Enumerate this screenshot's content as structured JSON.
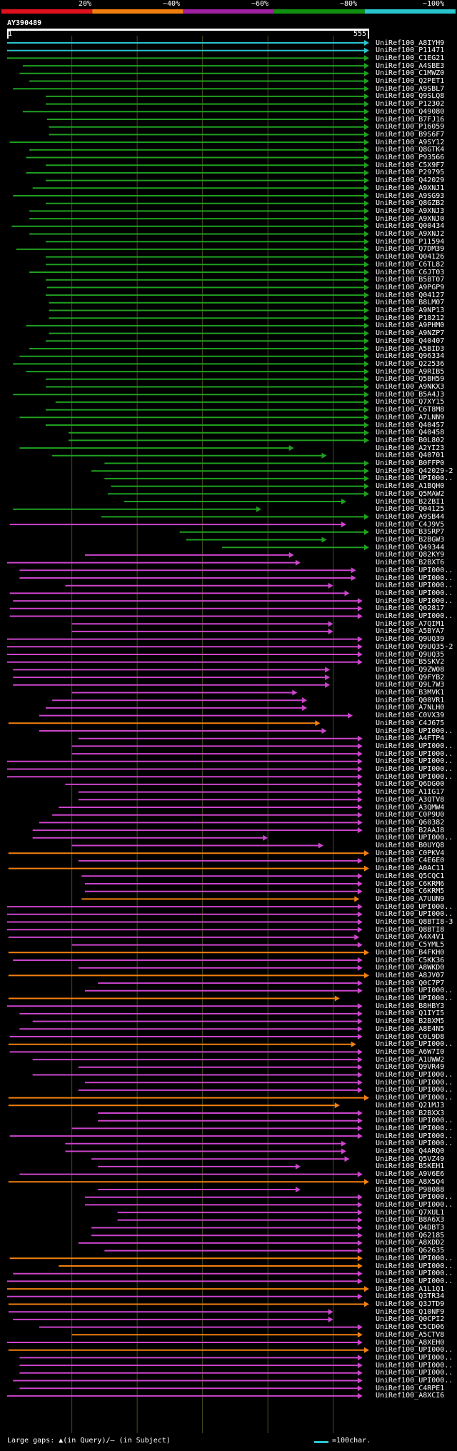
{
  "query": {
    "id": "AY390489",
    "start": "1",
    "end": "555"
  },
  "scale": {
    "labels": [
      "20%",
      "~40%",
      "~60%",
      "~80%",
      "~100%"
    ],
    "colors": [
      "#e0101e",
      "#f07f10",
      "#a020a0",
      "#109010",
      "#2ac4cf"
    ]
  },
  "colors": {
    "cyan": "#2ac4cf",
    "green": "#1fa01f",
    "magenta": "#cc44cc",
    "orange": "#f28010",
    "grid": "#4a4a1e",
    "text": "#ffffff"
  },
  "legend": {
    "text": "Large gaps: ▲(in Query)/– (in Subject)",
    "scale_text": "=100char."
  },
  "hits": [
    {
      "name": "UniRef100_A8IYH9",
      "from": 1,
      "to": 555,
      "c": "cyan"
    },
    {
      "name": "UniRef100_P11471",
      "from": 1,
      "to": 555,
      "c": "cyan"
    },
    {
      "name": "UniRef100_C1EG21",
      "from": 1,
      "to": 555,
      "c": "green"
    },
    {
      "name": "UniRef100_A4SBE3",
      "from": 25,
      "to": 555,
      "c": "green"
    },
    {
      "name": "UniRef100_C1MWZ0",
      "from": 20,
      "to": 555,
      "c": "green"
    },
    {
      "name": "UniRef100_Q2PET1",
      "from": 35,
      "to": 555,
      "c": "green"
    },
    {
      "name": "UniRef100_A9SBL7",
      "from": 10,
      "to": 555,
      "c": "green"
    },
    {
      "name": "UniRef100_Q9SLQ8",
      "from": 60,
      "to": 555,
      "c": "green"
    },
    {
      "name": "UniRef100_P12302",
      "from": 60,
      "to": 555,
      "c": "green"
    },
    {
      "name": "UniRef100_Q49080",
      "from": 25,
      "to": 555,
      "c": "green"
    },
    {
      "name": "UniRef100_B7FJ16",
      "from": 62,
      "to": 555,
      "c": "green"
    },
    {
      "name": "UniRef100_P16059",
      "from": 65,
      "to": 555,
      "c": "green"
    },
    {
      "name": "UniRef100_B9S6F7",
      "from": 65,
      "to": 555,
      "c": "green"
    },
    {
      "name": "UniRef100_A9SY12",
      "from": 5,
      "to": 555,
      "c": "green"
    },
    {
      "name": "UniRef100_Q8GTK4",
      "from": 35,
      "to": 555,
      "c": "green"
    },
    {
      "name": "UniRef100_P93566",
      "from": 30,
      "to": 555,
      "c": "green"
    },
    {
      "name": "UniRef100_C5X9F7",
      "from": 60,
      "to": 555,
      "c": "green"
    },
    {
      "name": "UniRef100_P29795",
      "from": 30,
      "to": 555,
      "c": "green"
    },
    {
      "name": "UniRef100_Q42029",
      "from": 60,
      "to": 555,
      "c": "green"
    },
    {
      "name": "UniRef100_A9XNJ1",
      "from": 40,
      "to": 555,
      "c": "green"
    },
    {
      "name": "UniRef100_A9SG93",
      "from": 10,
      "to": 555,
      "c": "green"
    },
    {
      "name": "UniRef100_Q8GZB2",
      "from": 60,
      "to": 555,
      "c": "green"
    },
    {
      "name": "UniRef100_A9XNJ3",
      "from": 35,
      "to": 555,
      "c": "green"
    },
    {
      "name": "UniRef100_A9XNJ0",
      "from": 35,
      "to": 555,
      "c": "green"
    },
    {
      "name": "UniRef100_Q00434",
      "from": 8,
      "to": 555,
      "c": "green"
    },
    {
      "name": "UniRef100_A9XNJ2",
      "from": 35,
      "to": 555,
      "c": "green"
    },
    {
      "name": "UniRef100_P11594",
      "from": 60,
      "to": 555,
      "c": "green"
    },
    {
      "name": "UniRef100_Q7DM39",
      "from": 15,
      "to": 555,
      "c": "green"
    },
    {
      "name": "UniRef100_Q04126",
      "from": 60,
      "to": 555,
      "c": "green"
    },
    {
      "name": "UniRef100_C6TL82",
      "from": 60,
      "to": 555,
      "c": "green"
    },
    {
      "name": "UniRef100_C6JT03",
      "from": 35,
      "to": 555,
      "c": "green"
    },
    {
      "name": "UniRef100_B5BT07",
      "from": 60,
      "to": 555,
      "c": "green"
    },
    {
      "name": "UniRef100_A9PGP9",
      "from": 62,
      "to": 555,
      "c": "green"
    },
    {
      "name": "UniRef100_Q04127",
      "from": 60,
      "to": 555,
      "c": "green"
    },
    {
      "name": "UniRef100_B8LM07",
      "from": 65,
      "to": 555,
      "c": "green"
    },
    {
      "name": "UniRef100_A9NP13",
      "from": 65,
      "to": 555,
      "c": "green"
    },
    {
      "name": "UniRef100_P18212",
      "from": 65,
      "to": 555,
      "c": "green"
    },
    {
      "name": "UniRef100_A9PHM0",
      "from": 30,
      "to": 555,
      "c": "green"
    },
    {
      "name": "UniRef100_A9NZP7",
      "from": 65,
      "to": 555,
      "c": "green"
    },
    {
      "name": "UniRef100_Q40407",
      "from": 60,
      "to": 555,
      "c": "green"
    },
    {
      "name": "UniRef100_A5BID3",
      "from": 35,
      "to": 555,
      "c": "green"
    },
    {
      "name": "UniRef100_Q96334",
      "from": 20,
      "to": 555,
      "c": "green"
    },
    {
      "name": "UniRef100_Q22536",
      "from": 10,
      "to": 555,
      "c": "green"
    },
    {
      "name": "UniRef100_A9RIB5",
      "from": 30,
      "to": 555,
      "c": "green"
    },
    {
      "name": "UniRef100_Q5BH59",
      "from": 60,
      "to": 555,
      "c": "green"
    },
    {
      "name": "UniRef100_A9NKX3",
      "from": 60,
      "to": 555,
      "c": "green"
    },
    {
      "name": "UniRef100_B5A4J3",
      "from": 10,
      "to": 555,
      "c": "green"
    },
    {
      "name": "UniRef100_Q7XY15",
      "from": 75,
      "to": 555,
      "c": "green"
    },
    {
      "name": "UniRef100_C6T8M8",
      "from": 60,
      "to": 555,
      "c": "green"
    },
    {
      "name": "UniRef100_A7LNN9",
      "from": 20,
      "to": 555,
      "c": "green"
    },
    {
      "name": "UniRef100_Q40457",
      "from": 60,
      "to": 555,
      "c": "green"
    },
    {
      "name": "UniRef100_Q40458",
      "from": 95,
      "to": 555,
      "c": "green"
    },
    {
      "name": "UniRef100_B0L802",
      "from": 95,
      "to": 555,
      "c": "green"
    },
    {
      "name": "UniRef100_A2YI23",
      "from": 20,
      "to": 440,
      "c": "green"
    },
    {
      "name": "UniRef100_Q40701",
      "from": 70,
      "to": 490,
      "c": "green"
    },
    {
      "name": "UniRef100_B0FFP0",
      "from": 150,
      "to": 555,
      "c": "green"
    },
    {
      "name": "UniRef100_Q42029-2",
      "from": 130,
      "to": 555,
      "c": "green"
    },
    {
      "name": "UniRef100_UPI000..",
      "from": 150,
      "to": 555,
      "c": "green"
    },
    {
      "name": "UniRef100_A1BQH0",
      "from": 160,
      "to": 555,
      "c": "green"
    },
    {
      "name": "UniRef100_Q5MAW2",
      "from": 155,
      "to": 555,
      "c": "green"
    },
    {
      "name": "UniRef100_B2ZBI1",
      "from": 180,
      "to": 520,
      "c": "green"
    },
    {
      "name": "UniRef100_Q04125",
      "from": 10,
      "to": 390,
      "c": "green"
    },
    {
      "name": "UniRef100_A9SB44",
      "from": 145,
      "to": 555,
      "c": "green"
    },
    {
      "name": "UniRef100_C4J9V5",
      "from": 5,
      "to": 520,
      "c": "magenta"
    },
    {
      "name": "UniRef100_B3SRP7",
      "from": 265,
      "to": 555,
      "c": "green"
    },
    {
      "name": "UniRef100_B2BGW3",
      "from": 275,
      "to": 490,
      "c": "green"
    },
    {
      "name": "UniRef100_Q49344",
      "from": 330,
      "to": 555,
      "c": "green"
    },
    {
      "name": "UniRef100_Q82KY9",
      "from": 120,
      "to": 440,
      "c": "magenta"
    },
    {
      "name": "UniRef100_B2BXT6",
      "from": 1,
      "to": 450,
      "c": "magenta"
    },
    {
      "name": "UniRef100_UPI000..",
      "from": 20,
      "to": 535,
      "c": "magenta"
    },
    {
      "name": "UniRef100_UPI000..",
      "from": 20,
      "to": 535,
      "c": "magenta"
    },
    {
      "name": "UniRef100_UPI000..",
      "from": 90,
      "to": 500,
      "c": "magenta"
    },
    {
      "name": "UniRef100_UPI000..",
      "from": 5,
      "to": 525,
      "c": "magenta"
    },
    {
      "name": "UniRef100_UPI000..",
      "from": 10,
      "to": 545,
      "c": "magenta"
    },
    {
      "name": "UniRef100_Q02817",
      "from": 5,
      "to": 545,
      "c": "magenta"
    },
    {
      "name": "UniRef100_UPI000..",
      "from": 5,
      "to": 545,
      "c": "magenta"
    },
    {
      "name": "UniRef100_A7QIM1",
      "from": 100,
      "to": 500,
      "c": "magenta"
    },
    {
      "name": "UniRef100_A5BYA7",
      "from": 100,
      "to": 500,
      "c": "magenta"
    },
    {
      "name": "UniRef100_Q9UQ39",
      "from": 1,
      "to": 545,
      "c": "magenta"
    },
    {
      "name": "UniRef100_Q9UQ35-2",
      "from": 1,
      "to": 545,
      "c": "magenta"
    },
    {
      "name": "UniRef100_Q9UQ35",
      "from": 1,
      "to": 545,
      "c": "magenta"
    },
    {
      "name": "UniRef100_B5SKV2",
      "from": 1,
      "to": 545,
      "c": "magenta"
    },
    {
      "name": "UniRef100_Q9ZW08",
      "from": 10,
      "to": 495,
      "c": "magenta"
    },
    {
      "name": "UniRef100_Q9FYB2",
      "from": 10,
      "to": 495,
      "c": "magenta"
    },
    {
      "name": "UniRef100_Q9L7W3",
      "from": 10,
      "to": 495,
      "c": "magenta"
    },
    {
      "name": "UniRef100_B3MVK1",
      "from": 100,
      "to": 445,
      "c": "magenta"
    },
    {
      "name": "UniRef100_Q00VR1",
      "from": 70,
      "to": 460,
      "c": "magenta"
    },
    {
      "name": "UniRef100_A7NLH0",
      "from": 60,
      "to": 460,
      "c": "magenta"
    },
    {
      "name": "UniRef100_C0VX39",
      "from": 50,
      "to": 530,
      "c": "magenta"
    },
    {
      "name": "UniRef100_C4J675",
      "from": 3,
      "to": 480,
      "c": "orange"
    },
    {
      "name": "UniRef100_UPI000..",
      "from": 50,
      "to": 490,
      "c": "magenta"
    },
    {
      "name": "UniRef100_A4FTP4",
      "from": 110,
      "to": 545,
      "c": "magenta"
    },
    {
      "name": "UniRef100_UPI000..",
      "from": 100,
      "to": 545,
      "c": "magenta"
    },
    {
      "name": "UniRef100_UPI000..",
      "from": 100,
      "to": 545,
      "c": "magenta"
    },
    {
      "name": "UniRef100_UPI000..",
      "from": 1,
      "to": 545,
      "c": "magenta"
    },
    {
      "name": "UniRef100_UPI000..",
      "from": 1,
      "to": 545,
      "c": "magenta"
    },
    {
      "name": "UniRef100_UPI000..",
      "from": 1,
      "to": 545,
      "c": "magenta"
    },
    {
      "name": "UniRef100_Q6DG00",
      "from": 90,
      "to": 545,
      "c": "magenta"
    },
    {
      "name": "UniRef100_A1IG17",
      "from": 110,
      "to": 545,
      "c": "magenta"
    },
    {
      "name": "UniRef100_A3QTV8",
      "from": 110,
      "to": 545,
      "c": "magenta"
    },
    {
      "name": "UniRef100_A3QMW4",
      "from": 80,
      "to": 545,
      "c": "magenta"
    },
    {
      "name": "UniRef100_C0P9U0",
      "from": 70,
      "to": 545,
      "c": "magenta"
    },
    {
      "name": "UniRef100_Q60382",
      "from": 50,
      "to": 545,
      "c": "magenta"
    },
    {
      "name": "UniRef100_B2AAJ8",
      "from": 40,
      "to": 545,
      "c": "magenta"
    },
    {
      "name": "UniRef100_UPI000..",
      "from": 40,
      "to": 400,
      "c": "magenta"
    },
    {
      "name": "UniRef100_B0UYQ8",
      "from": 100,
      "to": 485,
      "c": "magenta"
    },
    {
      "name": "UniRef100_C0PKV4",
      "from": 3,
      "to": 555,
      "c": "orange"
    },
    {
      "name": "UniRef100_C4E6E0",
      "from": 110,
      "to": 545,
      "c": "magenta"
    },
    {
      "name": "UniRef100_A0AC11",
      "from": 3,
      "to": 555,
      "c": "orange"
    },
    {
      "name": "UniRef100_Q5CQC1",
      "from": 115,
      "to": 545,
      "c": "magenta"
    },
    {
      "name": "UniRef100_C6KRM6",
      "from": 120,
      "to": 545,
      "c": "magenta"
    },
    {
      "name": "UniRef100_C6KRM5",
      "from": 120,
      "to": 545,
      "c": "magenta"
    },
    {
      "name": "UniRef100_A7UUN9",
      "from": 115,
      "to": 540,
      "c": "orange"
    },
    {
      "name": "UniRef100_UPI000..",
      "from": 1,
      "to": 545,
      "c": "magenta"
    },
    {
      "name": "UniRef100_UPI000..",
      "from": 1,
      "to": 545,
      "c": "magenta"
    },
    {
      "name": "UniRef100_Q8BTI8-3",
      "from": 1,
      "to": 545,
      "c": "magenta"
    },
    {
      "name": "UniRef100_Q8BTI8",
      "from": 1,
      "to": 545,
      "c": "magenta"
    },
    {
      "name": "UniRef100_A4X4V1",
      "from": 3,
      "to": 540,
      "c": "magenta"
    },
    {
      "name": "UniRef100_C5YML5",
      "from": 100,
      "to": 545,
      "c": "magenta"
    },
    {
      "name": "UniRef100_B4FKH0",
      "from": 3,
      "to": 555,
      "c": "orange"
    },
    {
      "name": "UniRef100_C5KK36",
      "from": 10,
      "to": 545,
      "c": "magenta"
    },
    {
      "name": "UniRef100_A8WKD0",
      "from": 110,
      "to": 545,
      "c": "magenta"
    },
    {
      "name": "UniRef100_A8JV07",
      "from": 3,
      "to": 555,
      "c": "orange"
    },
    {
      "name": "UniRef100_Q0C7P7",
      "from": 140,
      "to": 545,
      "c": "magenta"
    },
    {
      "name": "UniRef100_UPI000..",
      "from": 120,
      "to": 545,
      "c": "magenta"
    },
    {
      "name": "UniRef100_UPI000..",
      "from": 3,
      "to": 510,
      "c": "orange"
    },
    {
      "name": "UniRef100_B8HBY3",
      "from": 1,
      "to": 545,
      "c": "magenta"
    },
    {
      "name": "UniRef100_Q1IYI5",
      "from": 20,
      "to": 545,
      "c": "magenta"
    },
    {
      "name": "UniRef100_B2BXM5",
      "from": 40,
      "to": 545,
      "c": "magenta"
    },
    {
      "name": "UniRef100_A8E4N5",
      "from": 20,
      "to": 545,
      "c": "magenta"
    },
    {
      "name": "UniRef100_C0L9D8",
      "from": 5,
      "to": 545,
      "c": "magenta"
    },
    {
      "name": "UniRef100_UPI000..",
      "from": 3,
      "to": 535,
      "c": "orange"
    },
    {
      "name": "UniRef100_A6W7I0",
      "from": 5,
      "to": 545,
      "c": "magenta"
    },
    {
      "name": "UniRef100_A1UWW2",
      "from": 40,
      "to": 545,
      "c": "magenta"
    },
    {
      "name": "UniRef100_Q9VR49",
      "from": 110,
      "to": 545,
      "c": "magenta"
    },
    {
      "name": "UniRef100_UPI000..",
      "from": 40,
      "to": 545,
      "c": "magenta"
    },
    {
      "name": "UniRef100_UPI000..",
      "from": 120,
      "to": 545,
      "c": "magenta"
    },
    {
      "name": "UniRef100_UPI000..",
      "from": 110,
      "to": 545,
      "c": "magenta"
    },
    {
      "name": "UniRef100_UPI000..",
      "from": 3,
      "to": 555,
      "c": "orange"
    },
    {
      "name": "UniRef100_Q21MJ3",
      "from": 3,
      "to": 510,
      "c": "orange"
    },
    {
      "name": "UniRef100_B2BXX3",
      "from": 140,
      "to": 545,
      "c": "magenta"
    },
    {
      "name": "UniRef100_UPI000..",
      "from": 140,
      "to": 545,
      "c": "magenta"
    },
    {
      "name": "UniRef100_UPI000..",
      "from": 100,
      "to": 545,
      "c": "magenta"
    },
    {
      "name": "UniRef100_UPI000..",
      "from": 5,
      "to": 545,
      "c": "magenta"
    },
    {
      "name": "UniRef100_UPI000..",
      "from": 90,
      "to": 520,
      "c": "magenta"
    },
    {
      "name": "UniRef100_Q4ARQ0",
      "from": 90,
      "to": 520,
      "c": "magenta"
    },
    {
      "name": "UniRef100_Q5VZ49",
      "from": 130,
      "to": 525,
      "c": "magenta"
    },
    {
      "name": "UniRef100_B5KEH1",
      "from": 140,
      "to": 450,
      "c": "magenta"
    },
    {
      "name": "UniRef100_A9V6E6",
      "from": 20,
      "to": 545,
      "c": "magenta"
    },
    {
      "name": "UniRef100_A8X5Q4",
      "from": 3,
      "to": 555,
      "c": "orange"
    },
    {
      "name": "UniRef100_P98088",
      "from": 140,
      "to": 450,
      "c": "magenta"
    },
    {
      "name": "UniRef100_UPI000..",
      "from": 120,
      "to": 545,
      "c": "magenta"
    },
    {
      "name": "UniRef100_UPI000..",
      "from": 120,
      "to": 545,
      "c": "magenta"
    },
    {
      "name": "UniRef100_Q7XUL1",
      "from": 170,
      "to": 545,
      "c": "magenta"
    },
    {
      "name": "UniRef100_B8A6X3",
      "from": 170,
      "to": 545,
      "c": "magenta"
    },
    {
      "name": "UniRef100_Q4DBT3",
      "from": 130,
      "to": 545,
      "c": "magenta"
    },
    {
      "name": "UniRef100_Q62185",
      "from": 130,
      "to": 545,
      "c": "magenta"
    },
    {
      "name": "UniRef100_A8XDD2",
      "from": 110,
      "to": 545,
      "c": "magenta"
    },
    {
      "name": "UniRef100_Q62635",
      "from": 150,
      "to": 545,
      "c": "magenta"
    },
    {
      "name": "UniRef100_UPI000..",
      "from": 5,
      "to": 545,
      "c": "orange"
    },
    {
      "name": "UniRef100_UPI000..",
      "from": 80,
      "to": 545,
      "c": "orange"
    },
    {
      "name": "UniRef100_UPI000..",
      "from": 10,
      "to": 545,
      "c": "magenta"
    },
    {
      "name": "UniRef100_UPI000..",
      "from": 1,
      "to": 545,
      "c": "magenta"
    },
    {
      "name": "UniRef100_A1L1Q1",
      "from": 1,
      "to": 555,
      "c": "orange"
    },
    {
      "name": "UniRef100_Q3TR34",
      "from": 1,
      "to": 545,
      "c": "magenta"
    },
    {
      "name": "UniRef100_Q3JTD9",
      "from": 3,
      "to": 555,
      "c": "orange"
    },
    {
      "name": "UniRef100_Q10NF9",
      "from": 3,
      "to": 500,
      "c": "magenta"
    },
    {
      "name": "UniRef100_Q0CPI2",
      "from": 10,
      "to": 500,
      "c": "magenta"
    },
    {
      "name": "UniRef100_C5CD06",
      "from": 50,
      "to": 545,
      "c": "magenta"
    },
    {
      "name": "UniRef100_A5CTV8",
      "from": 100,
      "to": 545,
      "c": "orange"
    },
    {
      "name": "UniRef100_A8XEH0",
      "from": 1,
      "to": 545,
      "c": "magenta"
    },
    {
      "name": "UniRef100_UPI000..",
      "from": 3,
      "to": 555,
      "c": "orange"
    },
    {
      "name": "UniRef100_UPI000..",
      "from": 20,
      "to": 545,
      "c": "magenta"
    },
    {
      "name": "UniRef100_UPI000..",
      "from": 20,
      "to": 545,
      "c": "magenta"
    },
    {
      "name": "UniRef100_UPI000..",
      "from": 20,
      "to": 545,
      "c": "magenta"
    },
    {
      "name": "UniRef100_UPI000..",
      "from": 10,
      "to": 545,
      "c": "magenta"
    },
    {
      "name": "UniRef100_C4RPE1",
      "from": 20,
      "to": 545,
      "c": "magenta"
    },
    {
      "name": "UniRef100_A8XCI6",
      "from": 1,
      "to": 545,
      "c": "magenta"
    }
  ]
}
